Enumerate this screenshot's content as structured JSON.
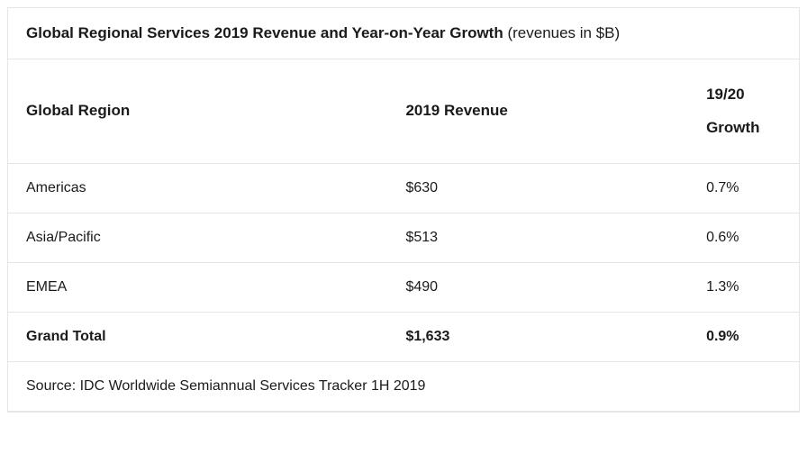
{
  "table": {
    "caption_bold": "Global Regional Services 2019 Revenue and Year-on-Year Growth",
    "caption_normal": " (revenues in $B)",
    "columns": {
      "region": "Global Region",
      "revenue": "2019 Revenue",
      "growth_line1": "19/20",
      "growth_line2": "Growth"
    },
    "rows": [
      {
        "region": "Americas",
        "revenue": "$630",
        "growth": "0.7%"
      },
      {
        "region": "Asia/Pacific",
        "revenue": "$513",
        "growth": "0.6%"
      },
      {
        "region": "EMEA",
        "revenue": "$490",
        "growth": "1.3%"
      }
    ],
    "total": {
      "label": "Grand Total",
      "revenue": "$1,633",
      "growth": "0.9%"
    },
    "source": "Source: IDC Worldwide Semiannual Services Tracker 1H 2019",
    "colors": {
      "border": "#e5e5e5",
      "text": "#1a1a1a",
      "background": "#ffffff"
    },
    "font_sizes": {
      "caption": 17,
      "header": 17,
      "cell": 16
    }
  }
}
